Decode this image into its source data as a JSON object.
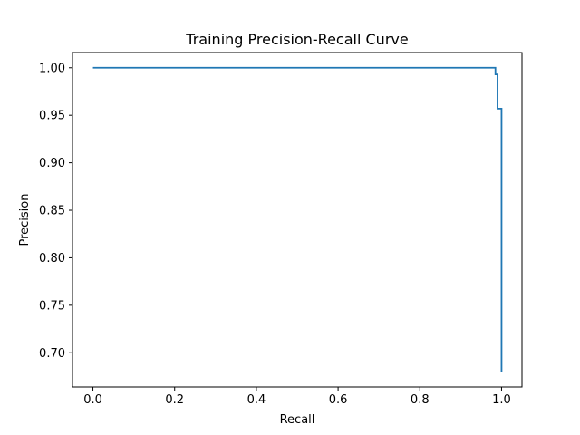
{
  "chart_data": {
    "type": "line",
    "drawstyle": "steps-post",
    "title": "Training Precision-Recall Curve",
    "xlabel": "Recall",
    "ylabel": "Precision",
    "xlim": [
      -0.05,
      1.05
    ],
    "ylim": [
      0.664,
      1.016
    ],
    "x_ticks": [
      0.0,
      0.2,
      0.4,
      0.6,
      0.8,
      1.0
    ],
    "x_tick_labels": [
      "0.0",
      "0.2",
      "0.4",
      "0.6",
      "0.8",
      "1.0"
    ],
    "y_ticks": [
      0.7,
      0.75,
      0.8,
      0.85,
      0.9,
      0.95,
      1.0
    ],
    "y_tick_labels": [
      "0.70",
      "0.75",
      "0.80",
      "0.85",
      "0.90",
      "0.95",
      "1.00"
    ],
    "grid": false,
    "legend": "none",
    "series": [
      {
        "color": "#1f77b4",
        "x": [
          0.0,
          0.985,
          0.985,
          0.99,
          0.99,
          1.0,
          1.0
        ],
        "y": [
          1.0,
          1.0,
          0.993,
          0.993,
          0.957,
          0.957,
          0.68
        ]
      }
    ]
  }
}
